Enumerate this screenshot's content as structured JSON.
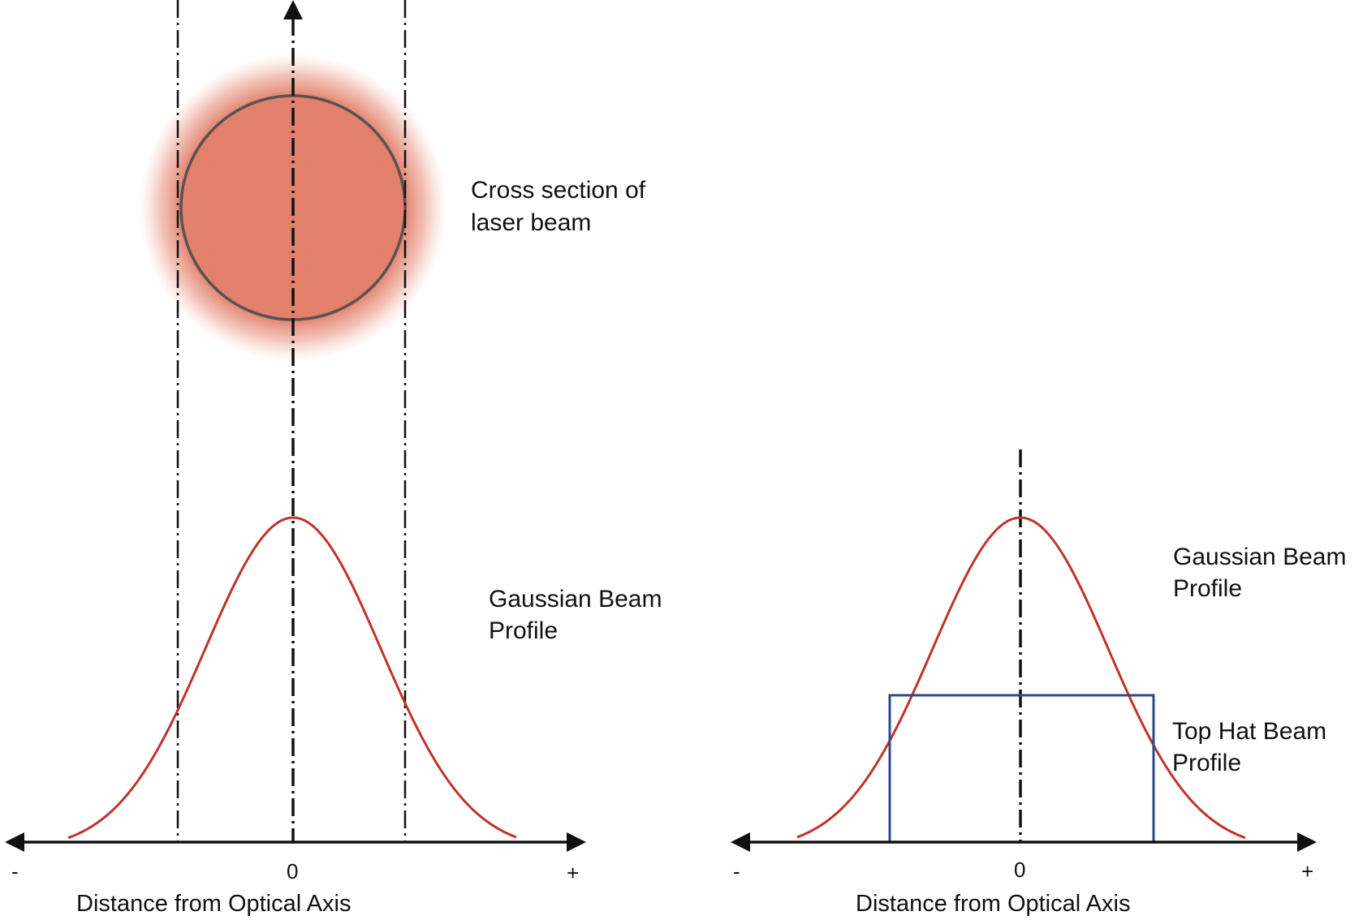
{
  "colors": {
    "gaussian_curve": "#c0342a",
    "top_hat": "#2b4a8a",
    "axis": "#111111",
    "beam_spot": "#e07a64",
    "beam_outline": "#5a5252"
  },
  "left_panel": {
    "cross_section_label_line1": "Cross section of",
    "cross_section_label_line2": "laser beam",
    "gaussian_label_line1": "Gaussian Beam",
    "gaussian_label_line2": "Profile",
    "tick_minus": "-",
    "tick_zero": "0",
    "tick_plus": "+",
    "axis_title": "Distance from Optical Axis"
  },
  "right_panel": {
    "gaussian_label_line1": "Gaussian Beam",
    "gaussian_label_line2": "Profile",
    "tophat_label_line1": "Top Hat Beam",
    "tophat_label_line2": "Profile",
    "tick_minus": "-",
    "tick_zero": "0",
    "tick_plus": "+",
    "axis_title": "Distance from Optical Axis"
  }
}
